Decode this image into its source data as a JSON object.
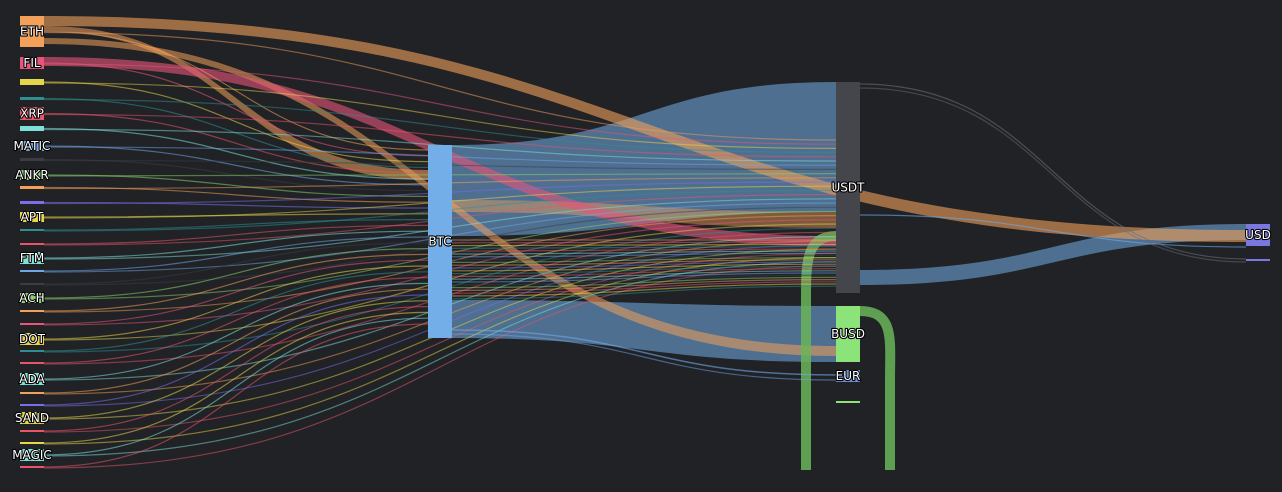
{
  "diagram": {
    "type": "sankey",
    "background": "#202226",
    "nodes": [
      {
        "id": "eth",
        "label": "ETH",
        "color": "#f2a05a"
      },
      {
        "id": "fil",
        "label": "FIL",
        "color": "#e8557a"
      },
      {
        "id": "n3",
        "label": "",
        "color": "#e6d44a"
      },
      {
        "id": "n4",
        "label": "",
        "color": "#2f8f8f"
      },
      {
        "id": "xrp",
        "label": "XRP",
        "color": "#e8556a"
      },
      {
        "id": "n6",
        "label": "",
        "color": "#7fe0d8"
      },
      {
        "id": "matic",
        "label": "MATIC",
        "color": "#6fa8e8"
      },
      {
        "id": "n8",
        "label": "",
        "color": "#3a3d44"
      },
      {
        "id": "ankr",
        "label": "ANKR",
        "color": "#8ad16a"
      },
      {
        "id": "n10",
        "label": "",
        "color": "#f2a05a"
      },
      {
        "id": "n11",
        "label": "",
        "color": "#7a6fe8"
      },
      {
        "id": "apt",
        "label": "APT",
        "color": "#e6d44a"
      },
      {
        "id": "n13",
        "label": "",
        "color": "#2f8f8f"
      },
      {
        "id": "n14",
        "label": "",
        "color": "#e8556a"
      },
      {
        "id": "ftm",
        "label": "FTM",
        "color": "#7fe0d8"
      },
      {
        "id": "n16",
        "label": "",
        "color": "#6fa8e8"
      },
      {
        "id": "n17",
        "label": "",
        "color": "#3a3d44"
      },
      {
        "id": "ach",
        "label": "ACH",
        "color": "#8ad16a"
      },
      {
        "id": "n19",
        "label": "",
        "color": "#f2a05a"
      },
      {
        "id": "n20",
        "label": "",
        "color": "#e8557a"
      },
      {
        "id": "dot",
        "label": "DOT",
        "color": "#e6d44a"
      },
      {
        "id": "n22",
        "label": "",
        "color": "#2f8f8f"
      },
      {
        "id": "n23",
        "label": "",
        "color": "#e8556a"
      },
      {
        "id": "ada",
        "label": "ADA",
        "color": "#7fe0d8"
      },
      {
        "id": "n25",
        "label": "",
        "color": "#f2a05a"
      },
      {
        "id": "n26",
        "label": "",
        "color": "#7a6fe8"
      },
      {
        "id": "sand",
        "label": "SAND",
        "color": "#e6d44a"
      },
      {
        "id": "n28",
        "label": "",
        "color": "#e8556a"
      },
      {
        "id": "n29",
        "label": "",
        "color": "#e6d44a"
      },
      {
        "id": "magic",
        "label": "MAGIC",
        "color": "#7fe0d8"
      },
      {
        "id": "n31",
        "label": "",
        "color": "#e8556a"
      },
      {
        "id": "btc",
        "label": "BTC",
        "color": "#74aee8"
      },
      {
        "id": "usdt",
        "label": "USDT",
        "color": "#45464c"
      },
      {
        "id": "busd",
        "label": "BUSD",
        "color": "#8be37a"
      },
      {
        "id": "eur",
        "label": "EUR",
        "color": "#6a8fd8"
      },
      {
        "id": "n36",
        "label": "",
        "color": "#8be37a"
      },
      {
        "id": "usd",
        "label": "USD",
        "color": "#7a78e0"
      },
      {
        "id": "n38",
        "label": "",
        "color": "#7a78e0"
      }
    ]
  }
}
